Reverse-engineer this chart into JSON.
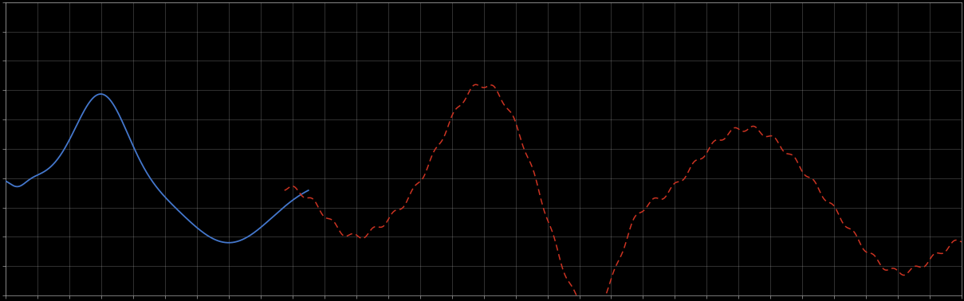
{
  "background_color": "#000000",
  "plot_bg_color": "#000000",
  "grid_color": "#aaaaaa",
  "blue_color": "#4477cc",
  "red_color": "#cc3322",
  "figsize": [
    12.09,
    3.78
  ],
  "dpi": 100,
  "xlim": [
    0,
    120
  ],
  "ylim": [
    0,
    10
  ],
  "n_x_gridlines": 30,
  "n_y_gridlines": 10
}
